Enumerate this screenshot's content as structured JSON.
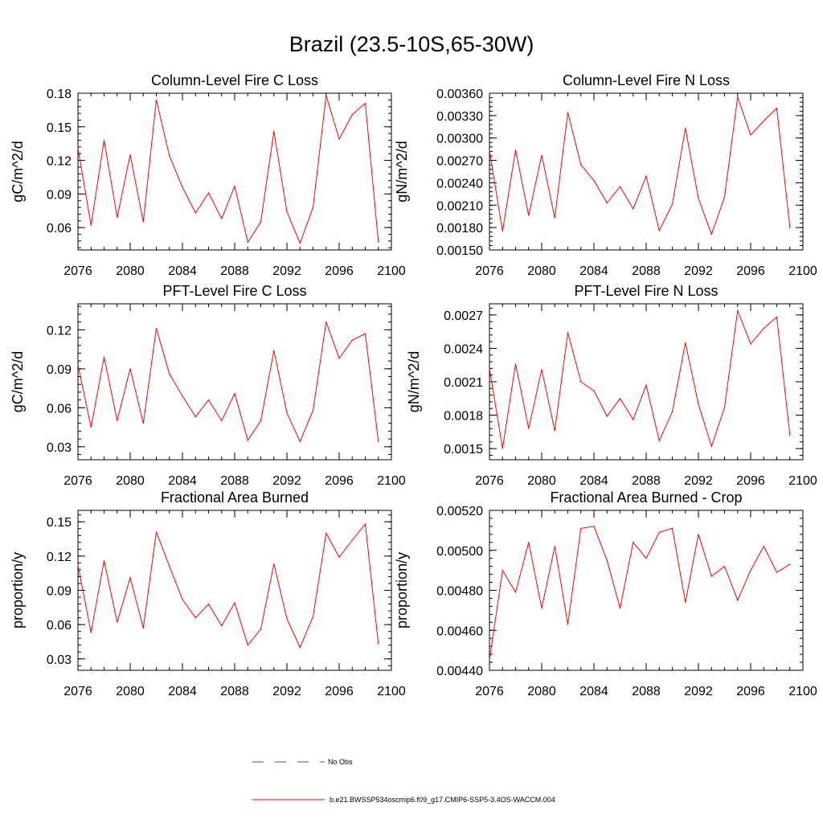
{
  "title": "Brazil (23.5-10S,65-30W)",
  "colors": {
    "model_line": "#ff0000",
    "obs_line": "#3b4bd6",
    "frame": "#000000"
  },
  "legend": {
    "obs_label": "No Obs",
    "model_label": "b.e21.BWSSP534oscmip6.f09_g17.CMIP6-SSP5-3.4OS-WACCM.004"
  },
  "chart_data": [
    {
      "type": "line",
      "title": "Column-Level Fire C Loss",
      "ylabel": "gC/m^2/d",
      "xlim": [
        2076,
        2100
      ],
      "ylim": [
        0.04,
        0.18
      ],
      "xticks": [
        "2076",
        "2080",
        "2084",
        "2088",
        "2092",
        "2096",
        "2100"
      ],
      "yticks": [
        "0.06",
        "0.09",
        "0.12",
        "0.15",
        "0.18"
      ],
      "series": [
        {
          "x": [
            2076,
            2077,
            2078,
            2079,
            2080,
            2081,
            2082,
            2083,
            2084,
            2085,
            2086,
            2087,
            2088,
            2089,
            2090,
            2091,
            2092,
            2093,
            2094,
            2095,
            2096,
            2097,
            2098,
            2099
          ],
          "values": [
            0.131,
            0.062,
            0.138,
            0.069,
            0.125,
            0.065,
            0.174,
            0.124,
            0.096,
            0.073,
            0.091,
            0.068,
            0.097,
            0.047,
            0.065,
            0.146,
            0.074,
            0.046,
            0.078,
            0.178,
            0.139,
            0.161,
            0.171,
            0.047
          ]
        }
      ]
    },
    {
      "type": "line",
      "title": "Column-Level Fire N Loss",
      "ylabel": "gN/m^2/d",
      "xlim": [
        2076,
        2100
      ],
      "ylim": [
        0.0015,
        0.0036
      ],
      "xticks": [
        "2076",
        "2080",
        "2084",
        "2088",
        "2092",
        "2096",
        "2100"
      ],
      "yticks": [
        "0.00150",
        "0.00180",
        "0.00210",
        "0.00240",
        "0.00270",
        "0.00300",
        "0.00330",
        "0.00360"
      ],
      "series": [
        {
          "x": [
            2076,
            2077,
            2078,
            2079,
            2080,
            2081,
            2082,
            2083,
            2084,
            2085,
            2086,
            2087,
            2088,
            2089,
            2090,
            2091,
            2092,
            2093,
            2094,
            2095,
            2096,
            2097,
            2098,
            2099
          ],
          "values": [
            0.00283,
            0.00175,
            0.00284,
            0.00196,
            0.00277,
            0.00193,
            0.00334,
            0.00264,
            0.00243,
            0.00213,
            0.00235,
            0.00205,
            0.00249,
            0.00176,
            0.00211,
            0.00313,
            0.00219,
            0.00171,
            0.00221,
            0.00355,
            0.00304,
            0.00323,
            0.0034,
            0.0018
          ]
        }
      ]
    },
    {
      "type": "line",
      "title": "PFT-Level Fire C Loss",
      "ylabel": "gC/m^2/d",
      "xlim": [
        2076,
        2100
      ],
      "ylim": [
        0.02,
        0.14
      ],
      "xticks": [
        "2076",
        "2080",
        "2084",
        "2088",
        "2092",
        "2096",
        "2100"
      ],
      "yticks": [
        "0.03",
        "0.06",
        "0.09",
        "0.12"
      ],
      "series": [
        {
          "x": [
            2076,
            2077,
            2078,
            2079,
            2080,
            2081,
            2082,
            2083,
            2084,
            2085,
            2086,
            2087,
            2088,
            2089,
            2090,
            2091,
            2092,
            2093,
            2094,
            2095,
            2096,
            2097,
            2098,
            2099
          ],
          "values": [
            0.093,
            0.045,
            0.099,
            0.05,
            0.09,
            0.048,
            0.121,
            0.086,
            0.069,
            0.053,
            0.066,
            0.05,
            0.071,
            0.035,
            0.05,
            0.104,
            0.056,
            0.034,
            0.058,
            0.126,
            0.098,
            0.112,
            0.117,
            0.034
          ]
        }
      ]
    },
    {
      "type": "line",
      "title": "PFT-Level Fire N Loss",
      "ylabel": "gN/m^2/d",
      "xlim": [
        2076,
        2100
      ],
      "ylim": [
        0.0014,
        0.0028
      ],
      "xticks": [
        "2076",
        "2080",
        "2084",
        "2088",
        "2092",
        "2096",
        "2100"
      ],
      "yticks": [
        "0.0015",
        "0.0018",
        "0.0021",
        "0.0024",
        "0.0027"
      ],
      "series": [
        {
          "x": [
            2076,
            2077,
            2078,
            2079,
            2080,
            2081,
            2082,
            2083,
            2084,
            2085,
            2086,
            2087,
            2088,
            2089,
            2090,
            2091,
            2092,
            2093,
            2094,
            2095,
            2096,
            2097,
            2098,
            2099
          ],
          "values": [
            0.00222,
            0.0015,
            0.00226,
            0.00168,
            0.00221,
            0.00166,
            0.00254,
            0.0021,
            0.00202,
            0.00179,
            0.00195,
            0.00176,
            0.00207,
            0.00157,
            0.00183,
            0.00245,
            0.0019,
            0.00152,
            0.00187,
            0.00274,
            0.00244,
            0.00258,
            0.00268,
            0.00162
          ]
        }
      ]
    },
    {
      "type": "line",
      "title": "Fractional Area Burned",
      "ylabel": "proportion/y",
      "xlim": [
        2076,
        2100
      ],
      "ylim": [
        0.02,
        0.16
      ],
      "xticks": [
        "2076",
        "2080",
        "2084",
        "2088",
        "2092",
        "2096",
        "2100"
      ],
      "yticks": [
        "0.03",
        "0.06",
        "0.09",
        "0.12",
        "0.15"
      ],
      "series": [
        {
          "x": [
            2076,
            2077,
            2078,
            2079,
            2080,
            2081,
            2082,
            2083,
            2084,
            2085,
            2086,
            2087,
            2088,
            2089,
            2090,
            2091,
            2092,
            2093,
            2094,
            2095,
            2096,
            2097,
            2098,
            2099
          ],
          "values": [
            0.112,
            0.053,
            0.116,
            0.062,
            0.101,
            0.057,
            0.141,
            0.111,
            0.082,
            0.066,
            0.078,
            0.059,
            0.079,
            0.042,
            0.056,
            0.113,
            0.065,
            0.04,
            0.067,
            0.14,
            0.119,
            0.134,
            0.148,
            0.043
          ]
        }
      ]
    },
    {
      "type": "line",
      "title": "Fractional Area Burned - Crop",
      "ylabel": "proportion/y",
      "xlim": [
        2076,
        2100
      ],
      "ylim": [
        0.0044,
        0.0052
      ],
      "xticks": [
        "2076",
        "2080",
        "2084",
        "2088",
        "2092",
        "2096",
        "2100"
      ],
      "yticks": [
        "0.00440",
        "0.00460",
        "0.00480",
        "0.00500",
        "0.00520"
      ],
      "series": [
        {
          "x": [
            2076,
            2077,
            2078,
            2079,
            2080,
            2081,
            2082,
            2083,
            2084,
            2085,
            2086,
            2087,
            2088,
            2089,
            2090,
            2091,
            2092,
            2093,
            2094,
            2095,
            2096,
            2097,
            2098,
            2099
          ],
          "values": [
            0.00445,
            0.0049,
            0.00479,
            0.00504,
            0.00471,
            0.00502,
            0.00463,
            0.00511,
            0.00512,
            0.00495,
            0.00471,
            0.00504,
            0.00496,
            0.00509,
            0.00511,
            0.00474,
            0.00508,
            0.00487,
            0.00492,
            0.00475,
            0.0049,
            0.00502,
            0.00489,
            0.00493
          ]
        }
      ]
    }
  ]
}
